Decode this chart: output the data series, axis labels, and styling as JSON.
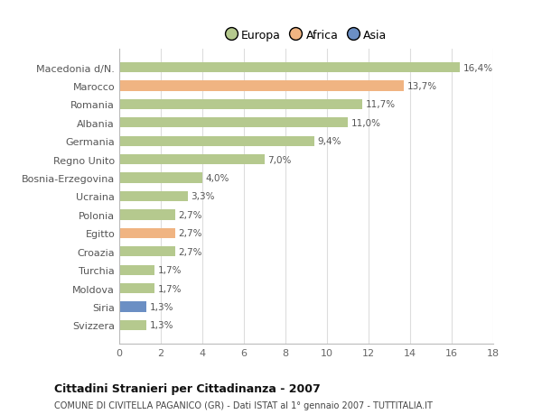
{
  "categories": [
    "Macedonia d/N.",
    "Marocco",
    "Romania",
    "Albania",
    "Germania",
    "Regno Unito",
    "Bosnia-Erzegovina",
    "Ucraina",
    "Polonia",
    "Egitto",
    "Croazia",
    "Turchia",
    "Moldova",
    "Siria",
    "Svizzera"
  ],
  "values": [
    16.4,
    13.7,
    11.7,
    11.0,
    9.4,
    7.0,
    4.0,
    3.3,
    2.7,
    2.7,
    2.7,
    1.7,
    1.7,
    1.3,
    1.3
  ],
  "labels": [
    "16,4%",
    "13,7%",
    "11,7%",
    "11,0%",
    "9,4%",
    "7,0%",
    "4,0%",
    "3,3%",
    "2,7%",
    "2,7%",
    "2,7%",
    "1,7%",
    "1,7%",
    "1,3%",
    "1,3%"
  ],
  "continents": [
    "Europa",
    "Africa",
    "Europa",
    "Europa",
    "Europa",
    "Europa",
    "Europa",
    "Europa",
    "Europa",
    "Africa",
    "Europa",
    "Europa",
    "Europa",
    "Asia",
    "Europa"
  ],
  "colors": {
    "Europa": "#b5c98e",
    "Africa": "#f0b482",
    "Asia": "#6b8fc4"
  },
  "legend_items": [
    "Europa",
    "Africa",
    "Asia"
  ],
  "legend_colors": [
    "#b5c98e",
    "#f0b482",
    "#6b8fc4"
  ],
  "xlim": [
    0,
    18
  ],
  "xticks": [
    0,
    2,
    4,
    6,
    8,
    10,
    12,
    14,
    16,
    18
  ],
  "title": "Cittadini Stranieri per Cittadinanza - 2007",
  "subtitle": "COMUNE DI CIVITELLA PAGANICO (GR) - Dati ISTAT al 1° gennaio 2007 - TUTTITALIA.IT",
  "bg_color": "#ffffff",
  "grid_color": "#dddddd"
}
